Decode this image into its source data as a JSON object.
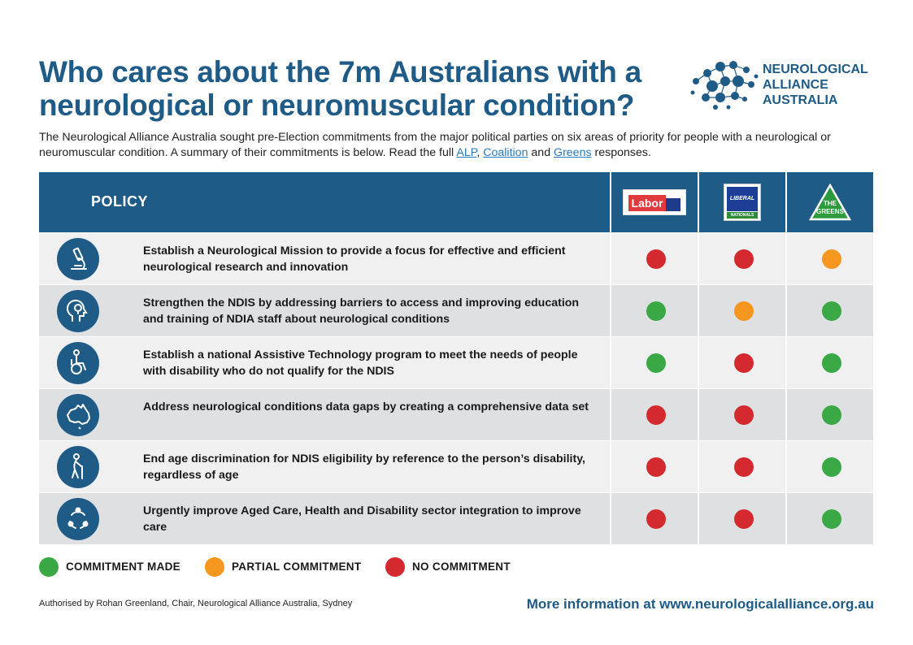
{
  "header": {
    "title": "Who cares about the 7m Australians with a neurological or neuromuscular condition?",
    "logo_lines": [
      "NEUROLOGICAL",
      "ALLIANCE",
      "AUSTRALIA"
    ]
  },
  "intro": {
    "text_before": "The Neurological Alliance Australia sought pre-Election commitments from the major political parties on six areas of priority for people with a neurological or neuromuscular condition. A summary of their commitments is below. Read the full ",
    "link_alp": "ALP",
    "sep1": ", ",
    "link_coalition": "Coalition",
    "sep2": " and ",
    "link_greens": "Greens",
    "text_after": " responses."
  },
  "table": {
    "policy_header": "POLICY",
    "parties": {
      "labor": "Labor",
      "liberal": "LIBERAL",
      "nationals": "NATIONALS",
      "greens_line1": "THE",
      "greens_line2": "GREENS"
    },
    "rows": [
      {
        "icon": "microscope-icon",
        "text": "Establish a Neurological Mission to provide a focus for effective and efficient neurological research and innovation",
        "labor": "none",
        "coalition": "none",
        "greens": "partial"
      },
      {
        "icon": "head-lightbulb-icon",
        "text": "Strengthen the NDIS by addressing barriers to access and improving education and training of NDIA staff about neurological conditions",
        "labor": "made",
        "coalition": "partial",
        "greens": "made"
      },
      {
        "icon": "wheelchair-icon",
        "text": "Establish a national Assistive Technology program to meet the needs of people with disability who do not qualify for the NDIS",
        "labor": "made",
        "coalition": "none",
        "greens": "made"
      },
      {
        "icon": "australia-map-icon",
        "text": "Address neurological conditions data gaps by creating a comprehensive data set",
        "labor": "none",
        "coalition": "none",
        "greens": "made"
      },
      {
        "icon": "elderly-person-icon",
        "text": "End age discrimination for NDIS eligibility by reference to the person’s disability, regardless of age",
        "labor": "none",
        "coalition": "none",
        "greens": "made"
      },
      {
        "icon": "cycle-arrows-icon",
        "text": "Urgently improve Aged Care, Health and Disability sector integration to improve care",
        "labor": "none",
        "coalition": "none",
        "greens": "made"
      }
    ]
  },
  "status_colors": {
    "made": "#3aa845",
    "partial": "#f5961e",
    "none": "#d42a2f"
  },
  "legend": {
    "made": "COMMITMENT MADE",
    "partial": "PARTIAL COMMITMENT",
    "none": "NO COMMITMENT"
  },
  "footer": {
    "authorised": "Authorised by Rohan Greenland, Chair, Neurological Alliance Australia, Sydney",
    "more_info": "More information at www.neurologicalalliance.org.au"
  }
}
